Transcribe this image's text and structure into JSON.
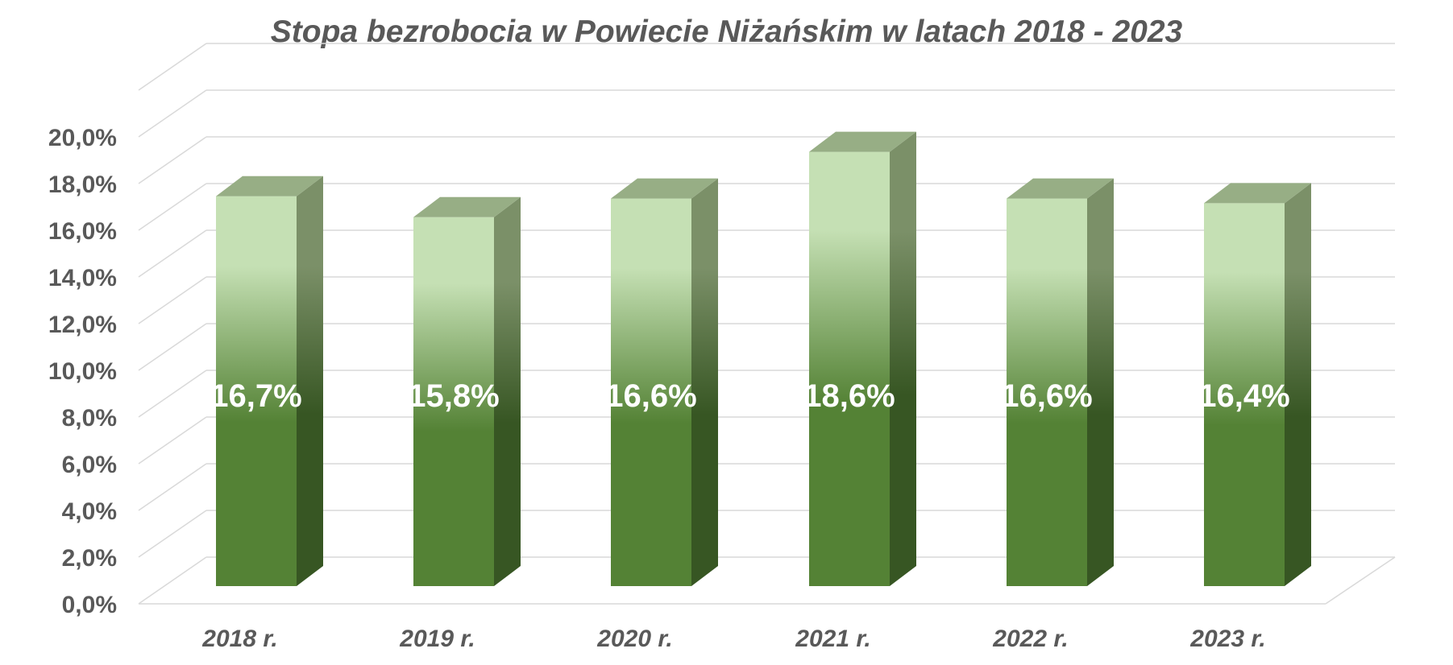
{
  "chart_data": {
    "type": "bar",
    "style": "3d-column",
    "title": "Stopa bezrobocia w Powiecie Niżańskim w latach 2018 - 2023",
    "categories": [
      "2018 r.",
      "2019 r.",
      "2020 r.",
      "2021 r.",
      "2022 r.",
      "2023 r."
    ],
    "values": [
      16.7,
      15.8,
      16.6,
      18.6,
      16.6,
      16.4
    ],
    "data_labels": [
      "16,7%",
      "15,8%",
      "16,6%",
      "18,6%",
      "16,6%",
      "16,4%"
    ],
    "yticks": [
      "0,0%",
      "2,0%",
      "4,0%",
      "6,0%",
      "8,0%",
      "10,0%",
      "12,0%",
      "14,0%",
      "16,0%",
      "18,0%",
      "20,0%"
    ],
    "ylim": [
      0,
      20
    ],
    "xlabel": "",
    "ylabel": "",
    "grid": true,
    "legend": "none",
    "colors": {
      "bar_front_bottom": "#548235",
      "bar_front_top": "#c5e0b4",
      "bar_side_bottom": "#375623",
      "bar_side_top": "#7b9068",
      "bar_top": "#97ae85",
      "grid": "#d9d9d9",
      "axis_text": "#595959",
      "label": "#ffffff"
    }
  }
}
